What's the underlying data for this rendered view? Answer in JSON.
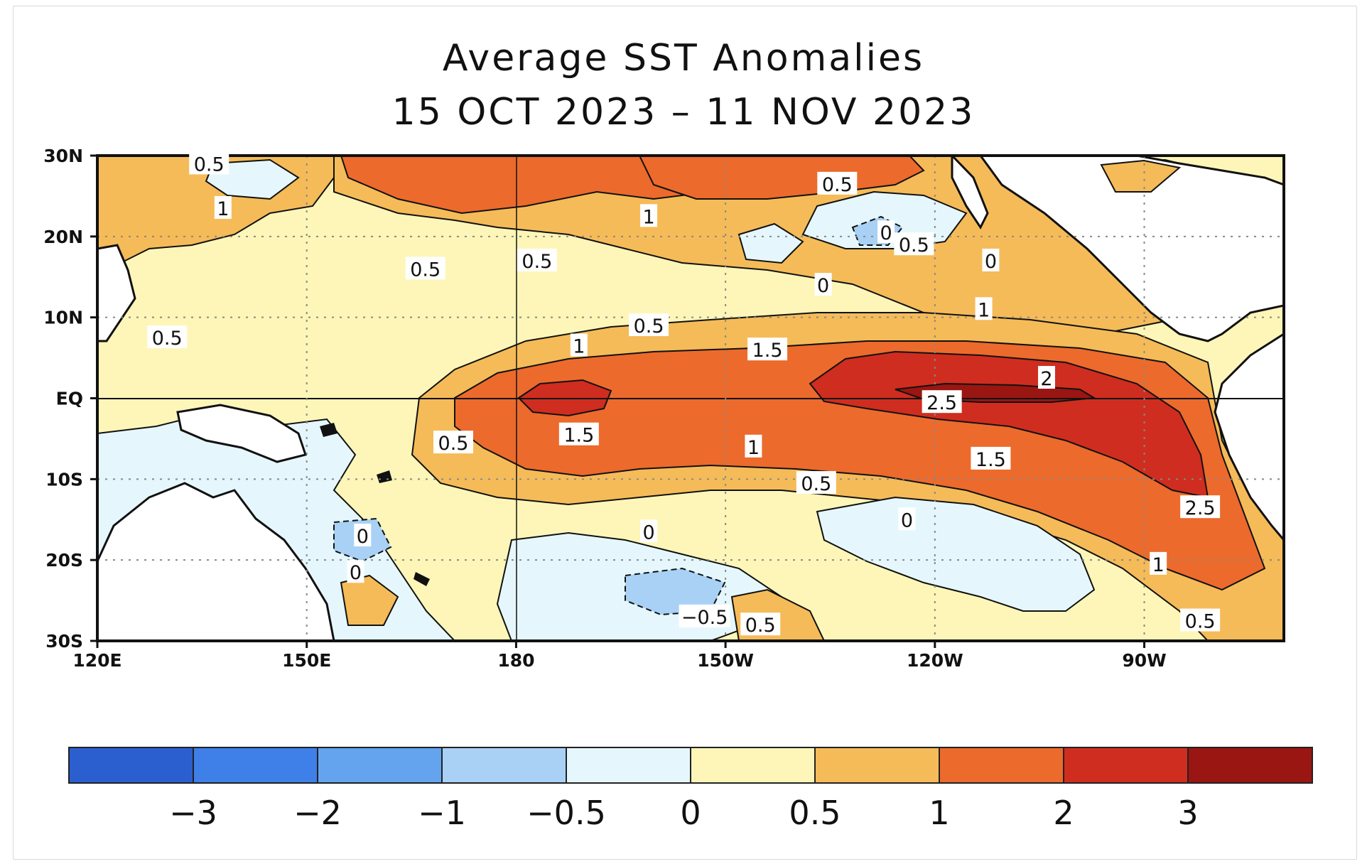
{
  "title": "Average SST Anomalies",
  "date_range": "15 OCT 2023 – 11 NOV 2023",
  "axes": {
    "lon_ticks": [
      {
        "label": "120E",
        "lon": 120
      },
      {
        "label": "150E",
        "lon": 150
      },
      {
        "label": "180",
        "lon": 180
      },
      {
        "label": "150W",
        "lon": 210
      },
      {
        "label": "120W",
        "lon": 240
      },
      {
        "label": "90W",
        "lon": 270
      }
    ],
    "lat_ticks": [
      {
        "label": "30N",
        "lat": 30
      },
      {
        "label": "20N",
        "lat": 20
      },
      {
        "label": "10N",
        "lat": 10
      },
      {
        "label": "EQ",
        "lat": 0
      },
      {
        "label": "10S",
        "lat": -10
      },
      {
        "label": "20S",
        "lat": -20
      },
      {
        "label": "30S",
        "lat": -30
      }
    ],
    "lon_range": [
      120,
      290
    ],
    "lat_range": [
      -30,
      30
    ],
    "grid": "dotted"
  },
  "contour_labels": [
    {
      "text": "0.5",
      "lon": 136,
      "lat": 29
    },
    {
      "text": "1",
      "lon": 138,
      "lat": 23.5
    },
    {
      "text": "0.5",
      "lon": 130,
      "lat": 7.5
    },
    {
      "text": "0.5",
      "lon": 167,
      "lat": 16
    },
    {
      "text": "0.5",
      "lon": 183,
      "lat": 17
    },
    {
      "text": "1",
      "lon": 199,
      "lat": 22.5
    },
    {
      "text": "0.5",
      "lon": 226,
      "lat": 26.5
    },
    {
      "text": "0",
      "lon": 233,
      "lat": 20.5
    },
    {
      "text": "0.5",
      "lon": 237,
      "lat": 19
    },
    {
      "text": "0",
      "lon": 248,
      "lat": 17
    },
    {
      "text": "0",
      "lon": 224,
      "lat": 14
    },
    {
      "text": "1",
      "lon": 247,
      "lat": 11
    },
    {
      "text": "0.5",
      "lon": 199,
      "lat": 9
    },
    {
      "text": "1",
      "lon": 189,
      "lat": 6.5
    },
    {
      "text": "1.5",
      "lon": 216,
      "lat": 6
    },
    {
      "text": "2",
      "lon": 256,
      "lat": 2.5
    },
    {
      "text": "2.5",
      "lon": 241,
      "lat": -0.5
    },
    {
      "text": "1.5",
      "lon": 189,
      "lat": -4.5
    },
    {
      "text": "0.5",
      "lon": 171,
      "lat": -5.5
    },
    {
      "text": "1",
      "lon": 214,
      "lat": -6
    },
    {
      "text": "1.5",
      "lon": 248,
      "lat": -7.5
    },
    {
      "text": "0.5",
      "lon": 223,
      "lat": -10.5
    },
    {
      "text": "0",
      "lon": 236,
      "lat": -15
    },
    {
      "text": "2.5",
      "lon": 278,
      "lat": -13.5
    },
    {
      "text": "0",
      "lon": 199,
      "lat": -16.5
    },
    {
      "text": "0",
      "lon": 158,
      "lat": -17
    },
    {
      "text": "0",
      "lon": 157,
      "lat": -21.5
    },
    {
      "text": "1",
      "lon": 272,
      "lat": -20.5
    },
    {
      "text": "0.5",
      "lon": 278,
      "lat": -27.5
    },
    {
      "text": "−0.5",
      "lon": 207,
      "lat": -27
    },
    {
      "text": "0.5",
      "lon": 215,
      "lat": -28
    }
  ],
  "colorbar": {
    "colors": [
      "#2b5fd0",
      "#3f7fe8",
      "#64a4ee",
      "#a8d1f5",
      "#e5f7fd",
      "#fdf6b8",
      "#f5bb59",
      "#ec6a2c",
      "#cf2d1f",
      "#9a1612"
    ],
    "labels": [
      "−3",
      "−2",
      "−1",
      "−0.5",
      "0",
      "0.5",
      "1",
      "2",
      "3"
    ]
  },
  "colors": {
    "land": "#ffffff",
    "neg_strong": "#64a4ee",
    "neg_weak": "#e5f7fd",
    "pos_05": "#fdf6b8",
    "pos_10": "#f5bb59",
    "pos_15": "#ec6a2c",
    "pos_20": "#cf2d1f",
    "pos_30": "#9a1612"
  }
}
